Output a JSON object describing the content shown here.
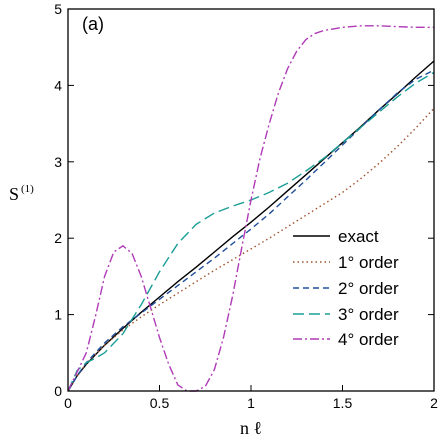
{
  "chart_data": {
    "type": "line",
    "panel_label": "(a)",
    "xlabel": "n ℓ",
    "ylabel_main": "S",
    "ylabel_sup": "(1)",
    "xlim": [
      0,
      2
    ],
    "ylim": [
      0,
      5
    ],
    "xticks": [
      0,
      0.5,
      1,
      1.5,
      2
    ],
    "xtick_labels": [
      "0",
      "0.5",
      "1",
      "1.5",
      "2"
    ],
    "yticks": [
      0,
      1,
      2,
      3,
      4,
      5
    ],
    "ytick_labels": [
      "0",
      "1",
      "2",
      "3",
      "4",
      "5"
    ],
    "legend_placement": "lower-right",
    "series": [
      {
        "name": "exact",
        "color": "#000000",
        "dash": "solid",
        "x": [
          0,
          0.05,
          0.1,
          0.2,
          0.3,
          0.4,
          0.5,
          0.6,
          0.7,
          0.8,
          0.9,
          1.0,
          1.1,
          1.2,
          1.3,
          1.4,
          1.5,
          1.6,
          1.7,
          1.8,
          1.9,
          2.0
        ],
        "y": [
          0,
          0.2,
          0.35,
          0.6,
          0.82,
          1.03,
          1.23,
          1.43,
          1.62,
          1.82,
          2.02,
          2.21,
          2.41,
          2.62,
          2.83,
          3.04,
          3.25,
          3.46,
          3.68,
          3.89,
          4.11,
          4.32
        ]
      },
      {
        "name": "1° order",
        "color": "#a0522d",
        "dash": "dotted",
        "x": [
          0,
          0.05,
          0.1,
          0.2,
          0.3,
          0.4,
          0.5,
          0.6,
          0.7,
          0.8,
          0.9,
          1.0,
          1.1,
          1.2,
          1.3,
          1.4,
          1.5,
          1.6,
          1.7,
          1.8,
          1.9,
          2.0
        ],
        "y": [
          0,
          0.2,
          0.36,
          0.6,
          0.8,
          0.97,
          1.13,
          1.28,
          1.43,
          1.58,
          1.72,
          1.86,
          2.0,
          2.15,
          2.3,
          2.45,
          2.6,
          2.78,
          2.98,
          3.2,
          3.44,
          3.7
        ]
      },
      {
        "name": "2° order",
        "color": "#1f4e9a",
        "dash": "dashed",
        "x": [
          0,
          0.05,
          0.1,
          0.2,
          0.3,
          0.4,
          0.5,
          0.6,
          0.7,
          0.8,
          0.9,
          1.0,
          1.1,
          1.2,
          1.3,
          1.4,
          1.5,
          1.6,
          1.7,
          1.8,
          1.9,
          2.0
        ],
        "y": [
          0,
          0.2,
          0.37,
          0.63,
          0.84,
          1.02,
          1.2,
          1.38,
          1.56,
          1.74,
          1.93,
          2.12,
          2.32,
          2.54,
          2.76,
          2.99,
          3.22,
          3.45,
          3.68,
          3.9,
          4.08,
          4.2
        ]
      },
      {
        "name": "3° order",
        "color": "#1a9e96",
        "dash": "longdash",
        "x": [
          0,
          0.05,
          0.1,
          0.15,
          0.2,
          0.3,
          0.4,
          0.5,
          0.6,
          0.7,
          0.8,
          0.9,
          1.0,
          1.1,
          1.2,
          1.3,
          1.4,
          1.5,
          1.6,
          1.7,
          1.8,
          1.9,
          2.0
        ],
        "y": [
          0,
          0.27,
          0.37,
          0.43,
          0.5,
          0.75,
          1.13,
          1.56,
          1.93,
          2.18,
          2.33,
          2.42,
          2.5,
          2.6,
          2.72,
          2.88,
          3.05,
          3.25,
          3.45,
          3.65,
          3.85,
          4.03,
          4.17
        ]
      },
      {
        "name": "4° order",
        "color": "#b03ab8",
        "dash": "dashdot",
        "x": [
          0,
          0.05,
          0.1,
          0.15,
          0.2,
          0.25,
          0.3,
          0.35,
          0.4,
          0.45,
          0.5,
          0.55,
          0.6,
          0.65,
          0.7,
          0.75,
          0.8,
          0.85,
          0.9,
          0.95,
          1.0,
          1.05,
          1.1,
          1.15,
          1.2,
          1.25,
          1.3,
          1.35,
          1.4,
          1.45,
          1.5,
          1.55,
          1.6,
          1.65,
          1.7,
          1.8,
          1.9,
          2.0
        ],
        "y": [
          0,
          0.25,
          0.5,
          0.98,
          1.5,
          1.82,
          1.9,
          1.8,
          1.5,
          1.1,
          0.7,
          0.35,
          0.08,
          0.0,
          0.0,
          0.06,
          0.28,
          0.7,
          1.25,
          1.88,
          2.5,
          3.05,
          3.5,
          3.9,
          4.22,
          4.45,
          4.6,
          4.68,
          4.72,
          4.74,
          4.76,
          4.77,
          4.78,
          4.78,
          4.78,
          4.77,
          4.76,
          4.76
        ]
      }
    ]
  }
}
